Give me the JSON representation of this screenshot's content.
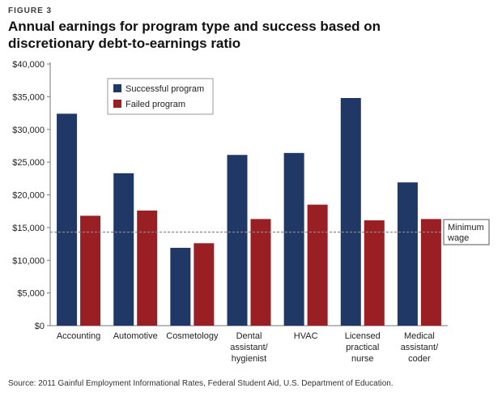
{
  "figure_label": "FIGURE 3",
  "title": "Annual earnings for program type and success based on discretionary debt-to-earnings ratio",
  "source": "Source: 2011 Gainful Employment Informational Rates, Federal Student Aid, U.S. Department of Education.",
  "colors": {
    "successful": "#1f3866",
    "failed": "#9a1f24",
    "reference_line": "#888888",
    "axis": "#777777"
  },
  "chart_data": {
    "type": "bar",
    "title": "Annual earnings for program type and success based on discretionary debt-to-earnings ratio",
    "xlabel": "",
    "ylabel": "",
    "ylim": [
      0,
      40000
    ],
    "yticks": [
      {
        "value": 0,
        "label": "$0"
      },
      {
        "value": 5000,
        "label": "$5,000"
      },
      {
        "value": 10000,
        "label": "$10,000"
      },
      {
        "value": 15000,
        "label": "$15,000"
      },
      {
        "value": 20000,
        "label": "$20,000"
      },
      {
        "value": 25000,
        "label": "$25,000"
      },
      {
        "value": 30000,
        "label": "$30,000"
      },
      {
        "value": 35000,
        "label": "$35,000"
      },
      {
        "value": 40000,
        "label": "$40,000"
      }
    ],
    "categories": [
      [
        "Accounting"
      ],
      [
        "Automotive"
      ],
      [
        "Cosmetology"
      ],
      [
        "Dental",
        "assistant/",
        "hygienist"
      ],
      [
        "HVAC"
      ],
      [
        "Licensed",
        "practical",
        "nurse"
      ],
      [
        "Medical",
        "assistant/",
        "coder"
      ]
    ],
    "series": [
      {
        "name": "Successful program",
        "color": "#1f3866",
        "values": [
          32400,
          23300,
          11900,
          26100,
          26400,
          34800,
          21900
        ]
      },
      {
        "name": "Failed program",
        "color": "#9a1f24",
        "values": [
          16800,
          17600,
          12600,
          16300,
          18500,
          16100,
          16300
        ]
      }
    ],
    "reference_line": {
      "value": 14300,
      "label": [
        "Minimum",
        "wage"
      ]
    },
    "legend_position": "top-left",
    "grid": false
  }
}
